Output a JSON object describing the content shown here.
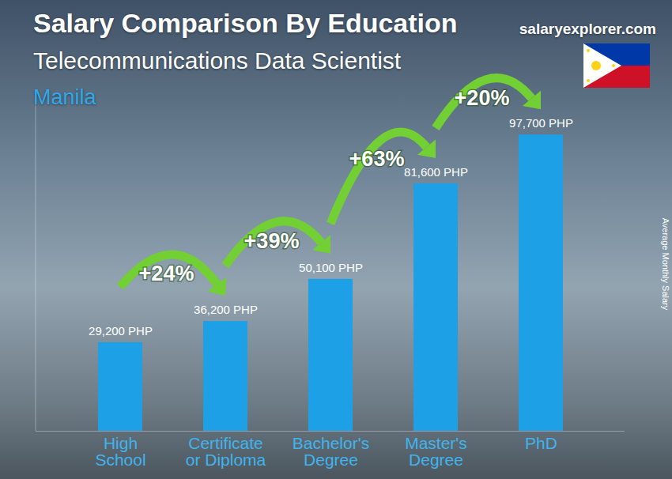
{
  "chart_data": {
    "type": "bar",
    "title": "Salary Comparison By Education",
    "subtitle": "Telecommunications Data Scientist",
    "location": "Manila",
    "source": "salaryexplorer.com",
    "y_label": "Average Monthly Salary",
    "categories": [
      "High School",
      "Certificate or Diploma",
      "Bachelor's Degree",
      "Master's Degree",
      "PhD"
    ],
    "values": [
      29200,
      36200,
      50100,
      81600,
      97700
    ],
    "value_labels": [
      "29,200 PHP",
      "36,200 PHP",
      "50,100 PHP",
      "81,600 PHP",
      "97,700 PHP"
    ],
    "data_labels": true,
    "color": "#1ea0e6",
    "ylim": [
      0,
      110000
    ],
    "yticks": [],
    "tick_labels": "x",
    "annotations": [
      {
        "text": "+24%",
        "from": "High School",
        "to": "Certificate or Diploma"
      },
      {
        "text": "+39%",
        "from": "Certificate or Diploma",
        "to": "Bachelor's Degree"
      },
      {
        "text": "+63%",
        "from": "Bachelor's Degree",
        "to": "Master's Degree"
      },
      {
        "text": "+20%",
        "from": "Master's Degree",
        "to": "PhD"
      }
    ]
  }
}
